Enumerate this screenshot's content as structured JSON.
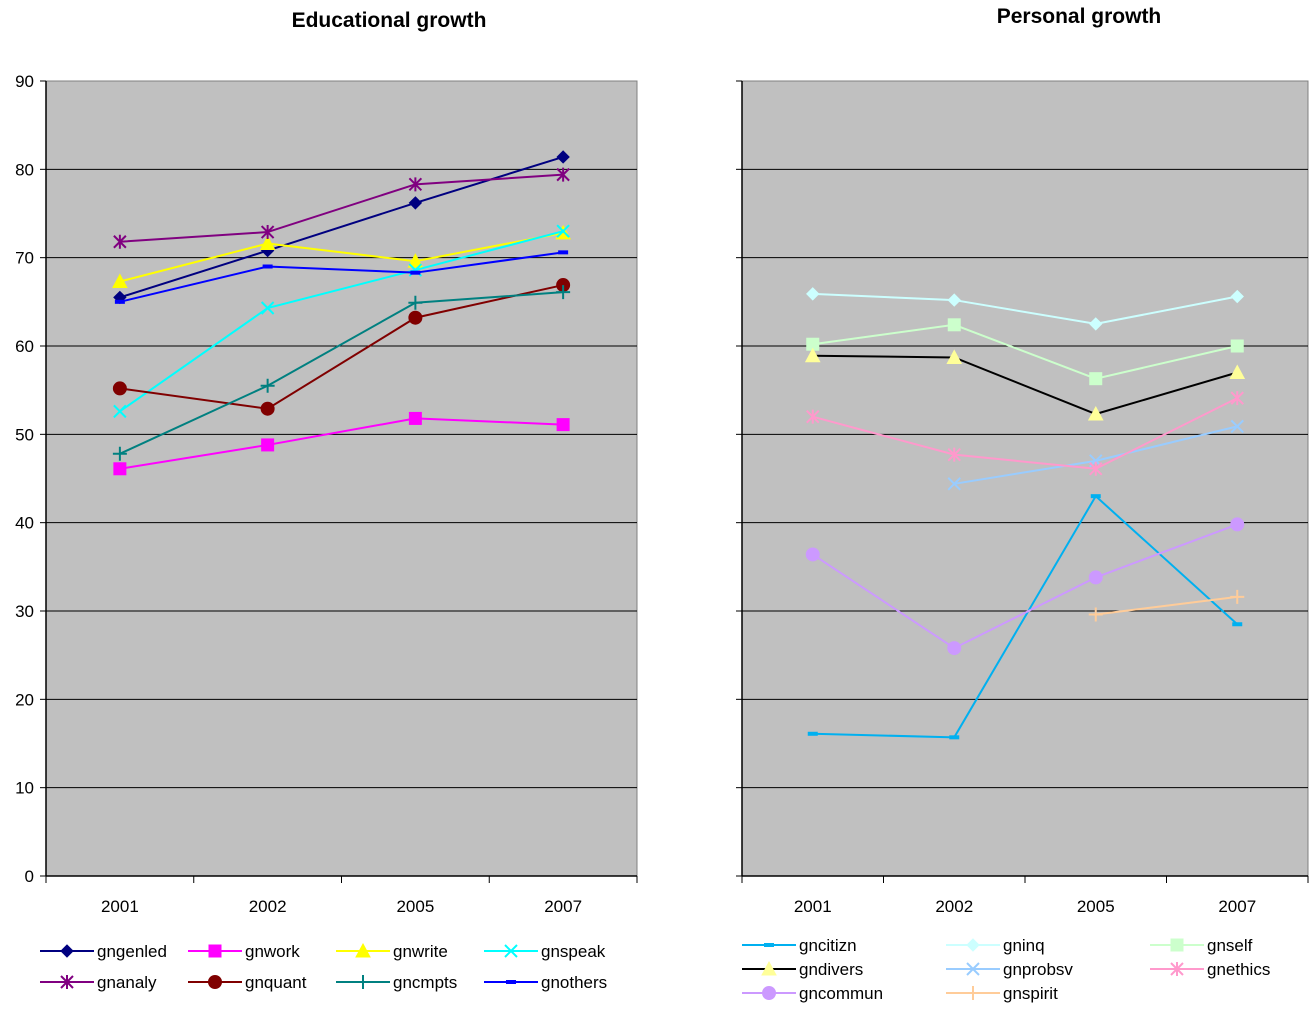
{
  "chart_data": [
    {
      "type": "line",
      "title": "Educational growth",
      "categories": [
        "2001",
        "2002",
        "2005",
        "2007"
      ],
      "ylim": [
        0,
        90
      ],
      "yticks": [
        "0",
        "10",
        "20",
        "30",
        "40",
        "50",
        "60",
        "70",
        "80",
        "90"
      ],
      "grid": true,
      "legend_position": "bottom",
      "plot_background": "#c0c0c0",
      "series": [
        {
          "name": "gngenled",
          "color": "#000080",
          "marker": "diamond",
          "values": [
            65.5,
            70.8,
            76.2,
            81.4
          ]
        },
        {
          "name": "gnwork",
          "color": "#ff00ff",
          "marker": "square",
          "values": [
            46.1,
            48.8,
            51.8,
            51.1
          ]
        },
        {
          "name": "gnwrite",
          "color": "#ffff00",
          "marker": "triangle",
          "values": [
            67.3,
            71.6,
            69.6,
            72.8
          ]
        },
        {
          "name": "gnspeak",
          "color": "#00ffff",
          "marker": "x",
          "values": [
            52.6,
            64.3,
            68.6,
            73.0
          ]
        },
        {
          "name": "gnanaly",
          "color": "#800080",
          "marker": "star",
          "values": [
            71.8,
            72.9,
            78.3,
            79.4
          ]
        },
        {
          "name": "gnquant",
          "color": "#800000",
          "marker": "circle",
          "values": [
            55.2,
            52.9,
            63.2,
            66.9
          ]
        },
        {
          "name": "gncmpts",
          "color": "#008080",
          "marker": "plus",
          "values": [
            47.8,
            55.5,
            64.9,
            66.1
          ]
        },
        {
          "name": "gnothers",
          "color": "#0000ff",
          "marker": "dash",
          "values": [
            65.0,
            69.0,
            68.3,
            70.6
          ]
        }
      ]
    },
    {
      "type": "line",
      "title": "Personal growth",
      "categories": [
        "2001",
        "2002",
        "2005",
        "2007"
      ],
      "ylim": [
        0,
        90
      ],
      "grid": true,
      "legend_position": "bottom",
      "plot_background": "#c0c0c0",
      "series": [
        {
          "name": "gncitizn",
          "color": "#00b0f0",
          "marker": "dash",
          "values": [
            16.1,
            15.7,
            43.0,
            28.5
          ]
        },
        {
          "name": "gninq",
          "color": "#ccffff",
          "marker": "diamond",
          "values": [
            65.9,
            65.2,
            62.5,
            65.6
          ]
        },
        {
          "name": "gnself",
          "color": "#ccffcc",
          "marker": "square",
          "values": [
            60.2,
            62.4,
            56.3,
            60.0
          ]
        },
        {
          "name": "gndivers",
          "color": "#000000",
          "marker": "triangle",
          "marker_color": "#ffff99",
          "values": [
            58.9,
            58.7,
            52.3,
            57.0
          ]
        },
        {
          "name": "gnprobsv",
          "color": "#99ccff",
          "marker": "x",
          "values": [
            null,
            44.4,
            47.0,
            50.9
          ]
        },
        {
          "name": "gnethics",
          "color": "#ff99cc",
          "marker": "star",
          "values": [
            52.0,
            47.7,
            46.1,
            54.1
          ]
        },
        {
          "name": "gncommun",
          "color": "#cc99ff",
          "marker": "circle",
          "values": [
            36.4,
            25.8,
            33.8,
            39.8
          ]
        },
        {
          "name": "gnspirit",
          "color": "#ffcc99",
          "marker": "plus",
          "values": [
            null,
            null,
            29.6,
            31.6
          ]
        }
      ]
    }
  ]
}
